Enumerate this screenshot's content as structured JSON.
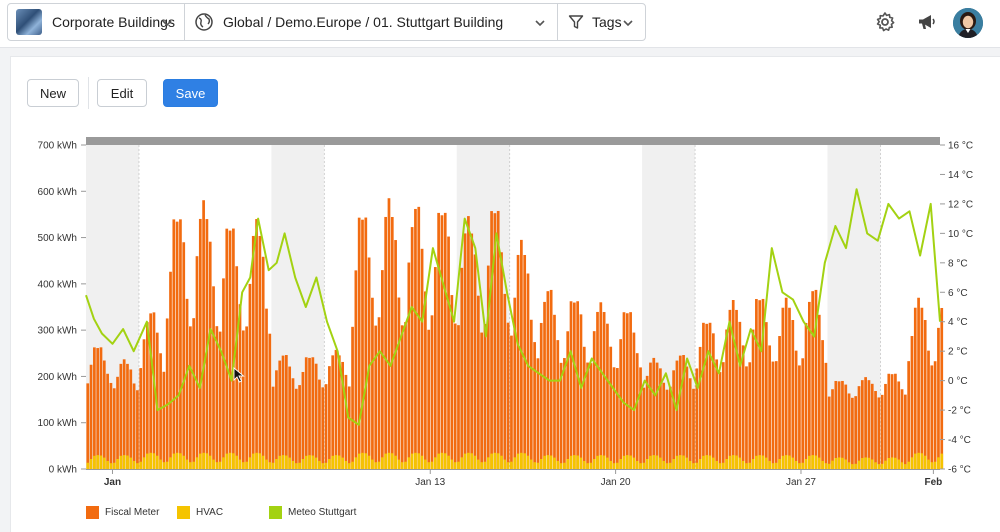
{
  "topbar": {
    "building": "Corporate Buildings",
    "path": "Global / Demo.Europe / 01. Stuttgart Building",
    "tags": "Tags",
    "icons": [
      "settings-icon",
      "megaphone-icon",
      "avatar"
    ]
  },
  "toolbar": {
    "new_label": "New",
    "edit_label": "Edit",
    "save_label": "Save"
  },
  "colors": {
    "fiscal": "#f26b10",
    "hvac": "#f5c400",
    "meteo": "#a3d212",
    "save": "#2f80e4",
    "band": "#f0f0f0",
    "topbar_band": "#9a9a9a"
  },
  "chart_data": {
    "type": "bar",
    "title": "",
    "left_axis": {
      "ticks": [
        "0 kWh",
        "100 kWh",
        "200 kWh",
        "300 kWh",
        "400 kWh",
        "500 kWh",
        "600 kWh",
        "700 kWh"
      ],
      "ylim": [
        0,
        700
      ]
    },
    "right_axis": {
      "ticks": [
        "-6 °C",
        "-4 °C",
        "-2 °C",
        "0 °C",
        "2 °C",
        "4 °C",
        "6 °C",
        "8 °C",
        "10 °C",
        "12 °C",
        "14 °C",
        "16 °C"
      ],
      "ylim": [
        -6,
        16
      ]
    },
    "x_ticks": [
      {
        "label": "Jan",
        "day": 1,
        "bold": true
      },
      {
        "label": "Jan 13",
        "day": 13,
        "bold": false
      },
      {
        "label": "Jan 20",
        "day": 20,
        "bold": false
      },
      {
        "label": "Jan 27",
        "day": 27,
        "bold": false
      },
      {
        "label": "Feb",
        "day": 32,
        "bold": true
      }
    ],
    "x_range_days": [
      0.0,
      32.25
    ],
    "weekend_bands_days": [
      [
        0.0,
        2.0
      ],
      [
        7.0,
        9.0
      ],
      [
        14.0,
        16.0
      ],
      [
        21.0,
        23.0
      ],
      [
        28.0,
        30.0
      ]
    ],
    "series": [
      {
        "name": "Fiscal Meter",
        "unit": "kWh",
        "daily_peak_kWh": [
          270,
          237,
          345,
          570,
          590,
          540,
          540,
          250,
          250,
          260,
          565,
          585,
          580,
          585,
          555,
          580,
          495,
          395,
          380,
          365,
          350,
          240,
          250,
          330,
          370,
          380,
          370,
          395,
          195,
          200,
          210,
          370,
          380
        ],
        "night_kWh": 125
      },
      {
        "name": "HVAC",
        "unit": "kWh",
        "daily_peak_kWh": [
          30,
          30,
          35,
          35,
          35,
          35,
          35,
          30,
          30,
          30,
          35,
          35,
          35,
          35,
          35,
          35,
          35,
          30,
          30,
          30,
          30,
          30,
          30,
          30,
          30,
          30,
          30,
          30,
          25,
          25,
          25,
          35,
          35
        ]
      },
      {
        "name": "Meteo Stuttgart",
        "unit": "°C",
        "x": [
          0.0,
          0.3,
          0.6,
          1.0,
          1.4,
          1.8,
          2.3,
          2.7,
          3.1,
          3.5,
          3.9,
          4.3,
          4.7,
          5.1,
          5.5,
          5.9,
          6.2,
          6.5,
          6.9,
          7.2,
          7.5,
          7.9,
          8.3,
          8.7,
          9.1,
          9.5,
          9.9,
          10.3,
          10.7,
          11.1,
          11.5,
          11.9,
          12.3,
          12.7,
          13.1,
          13.5,
          13.9,
          14.3,
          14.7,
          15.1,
          15.5,
          15.9,
          16.3,
          16.7,
          17.1,
          17.5,
          17.9,
          18.3,
          18.7,
          19.1,
          19.5,
          19.9,
          20.3,
          20.7,
          21.1,
          21.5,
          21.9,
          22.3,
          22.7,
          23.1,
          23.5,
          23.9,
          24.3,
          24.7,
          25.1,
          25.5,
          25.9,
          26.3,
          26.7,
          27.1,
          27.5,
          27.9,
          28.3,
          28.7,
          29.1,
          29.5,
          29.9,
          30.3,
          30.7,
          31.1,
          31.5,
          31.9,
          32.25
        ],
        "y": [
          5.8,
          4.2,
          3.2,
          2.5,
          3.5,
          2.0,
          4.0,
          -2.0,
          -1.6,
          -1.0,
          1.0,
          -0.5,
          3.5,
          2.0,
          0.0,
          6.0,
          7.0,
          11.0,
          7.5,
          8.0,
          10.0,
          7.0,
          5.0,
          7.0,
          4.0,
          2.0,
          -2.5,
          -3.0,
          1.0,
          2.0,
          1.0,
          3.0,
          5.0,
          4.0,
          9.0,
          6.5,
          4.0,
          11.0,
          9.0,
          3.0,
          10.0,
          6.0,
          2.5,
          1.0,
          0.5,
          0.0,
          0.0,
          2.0,
          -0.5,
          1.5,
          0.5,
          -0.5,
          -1.5,
          -2.0,
          0.0,
          -1.0,
          0.5,
          -2.0,
          1.5,
          -0.5,
          2.0,
          0.5,
          4.0,
          1.0,
          3.5,
          2.0,
          9.0,
          6.0,
          5.5,
          4.0,
          3.0,
          8.0,
          10.5,
          9.0,
          13.0,
          10.0,
          9.5,
          12.0,
          11.0,
          11.5,
          8.5,
          12.0,
          4.0
        ]
      }
    ],
    "legend": [
      {
        "label": "Fiscal Meter",
        "color": "#f26b10"
      },
      {
        "label": "HVAC",
        "color": "#f5c400"
      },
      {
        "label": "Meteo Stuttgart",
        "color": "#a3d212"
      }
    ],
    "legend_position": "bottom-left",
    "grid": false
  }
}
